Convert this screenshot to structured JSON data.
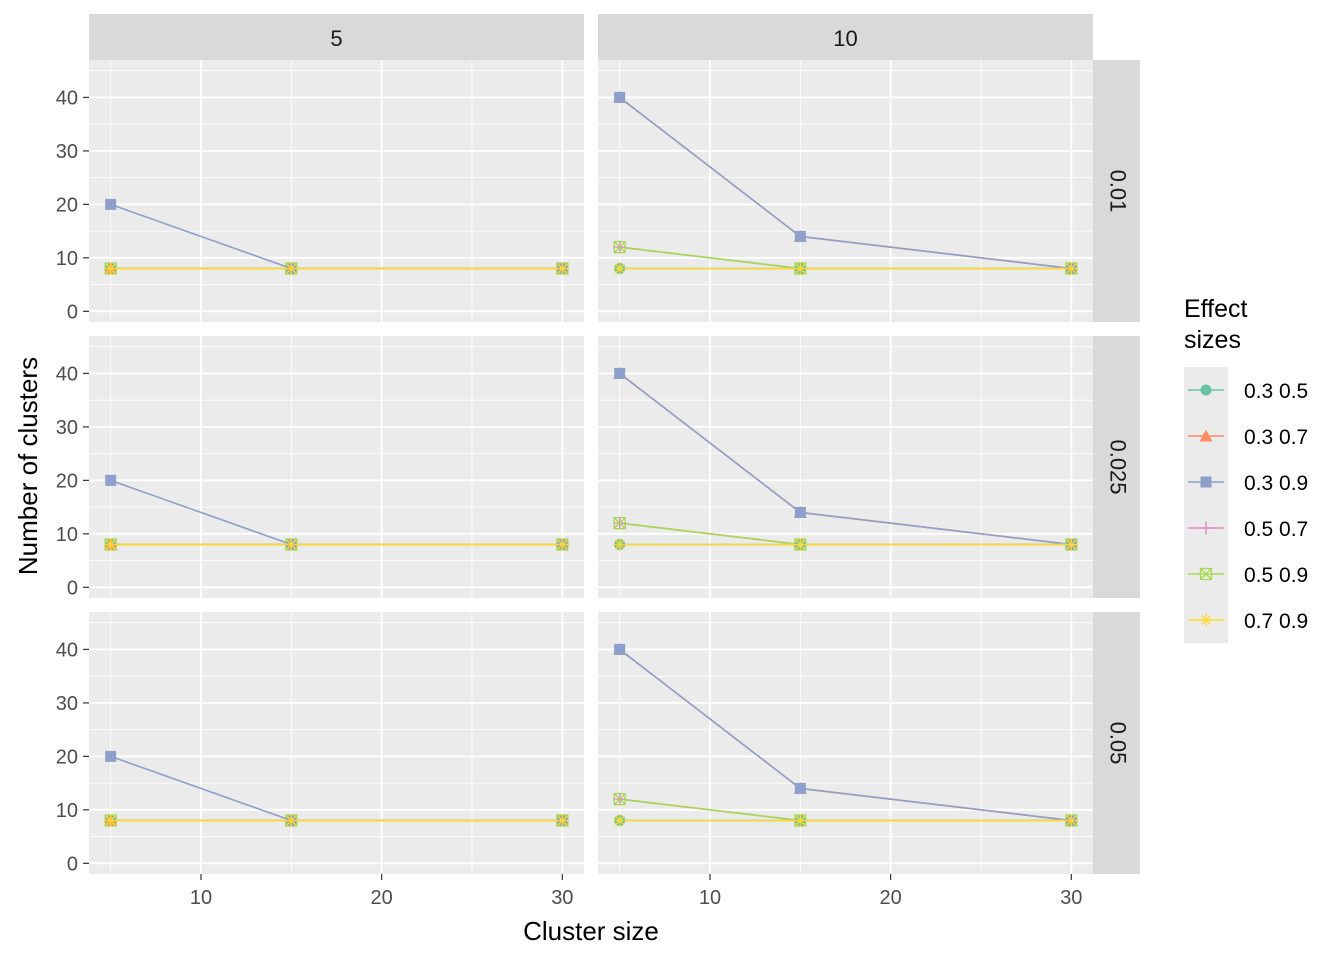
{
  "chart_data": {
    "type": "line",
    "facet_columns": [
      "5",
      "10"
    ],
    "facet_rows": [
      "0.01",
      "0.025",
      "0.05"
    ],
    "xlabel": "Cluster size",
    "ylabel": "Number of clusters",
    "xlim": [
      3.8,
      31.2
    ],
    "ylim": [
      -2,
      47
    ],
    "x_ticks": [
      10,
      20,
      30
    ],
    "y_ticks": [
      0,
      10,
      20,
      30,
      40
    ],
    "x_values": [
      5,
      15,
      30
    ],
    "grid": true,
    "legend": {
      "title_line1": "Effect",
      "title_line2": "sizes",
      "placement": "right",
      "entries": [
        {
          "label": "0.3 0.5",
          "color": "#66C2A5",
          "shape": "circle"
        },
        {
          "label": "0.3 0.7",
          "color": "#FC8D62",
          "shape": "triangle"
        },
        {
          "label": "0.3 0.9",
          "color": "#8DA0CB",
          "shape": "square"
        },
        {
          "label": "0.5 0.7",
          "color": "#E78AC3",
          "shape": "plus"
        },
        {
          "label": "0.5 0.9",
          "color": "#A6D854",
          "shape": "square-x"
        },
        {
          "label": "0.7 0.9",
          "color": "#FFD92F",
          "shape": "star"
        }
      ]
    },
    "panels": [
      {
        "col": "5",
        "row": "0.01",
        "series": [
          {
            "name": "0.3 0.5",
            "values": [
              8,
              8,
              8
            ]
          },
          {
            "name": "0.3 0.7",
            "values": [
              8,
              8,
              8
            ]
          },
          {
            "name": "0.3 0.9",
            "values": [
              20,
              8,
              8
            ]
          },
          {
            "name": "0.5 0.7",
            "values": [
              8,
              8,
              8
            ]
          },
          {
            "name": "0.5 0.9",
            "values": [
              8,
              8,
              8
            ]
          },
          {
            "name": "0.7 0.9",
            "values": [
              8,
              8,
              8
            ]
          }
        ]
      },
      {
        "col": "10",
        "row": "0.01",
        "series": [
          {
            "name": "0.3 0.5",
            "values": [
              8,
              8,
              8
            ]
          },
          {
            "name": "0.3 0.7",
            "values": [
              40,
              14,
              8
            ]
          },
          {
            "name": "0.3 0.9",
            "values": [
              40,
              14,
              8
            ]
          },
          {
            "name": "0.5 0.7",
            "values": [
              12,
              8,
              8
            ]
          },
          {
            "name": "0.5 0.9",
            "values": [
              12,
              8,
              8
            ]
          },
          {
            "name": "0.7 0.9",
            "values": [
              8,
              8,
              8
            ]
          }
        ]
      },
      {
        "col": "5",
        "row": "0.025",
        "series": [
          {
            "name": "0.3 0.5",
            "values": [
              8,
              8,
              8
            ]
          },
          {
            "name": "0.3 0.7",
            "values": [
              8,
              8,
              8
            ]
          },
          {
            "name": "0.3 0.9",
            "values": [
              20,
              8,
              8
            ]
          },
          {
            "name": "0.5 0.7",
            "values": [
              8,
              8,
              8
            ]
          },
          {
            "name": "0.5 0.9",
            "values": [
              8,
              8,
              8
            ]
          },
          {
            "name": "0.7 0.9",
            "values": [
              8,
              8,
              8
            ]
          }
        ]
      },
      {
        "col": "10",
        "row": "0.025",
        "series": [
          {
            "name": "0.3 0.5",
            "values": [
              8,
              8,
              8
            ]
          },
          {
            "name": "0.3 0.7",
            "values": [
              40,
              14,
              8
            ]
          },
          {
            "name": "0.3 0.9",
            "values": [
              40,
              14,
              8
            ]
          },
          {
            "name": "0.5 0.7",
            "values": [
              12,
              8,
              8
            ]
          },
          {
            "name": "0.5 0.9",
            "values": [
              12,
              8,
              8
            ]
          },
          {
            "name": "0.7 0.9",
            "values": [
              8,
              8,
              8
            ]
          }
        ]
      },
      {
        "col": "5",
        "row": "0.05",
        "series": [
          {
            "name": "0.3 0.5",
            "values": [
              8,
              8,
              8
            ]
          },
          {
            "name": "0.3 0.7",
            "values": [
              8,
              8,
              8
            ]
          },
          {
            "name": "0.3 0.9",
            "values": [
              20,
              8,
              8
            ]
          },
          {
            "name": "0.5 0.7",
            "values": [
              8,
              8,
              8
            ]
          },
          {
            "name": "0.5 0.9",
            "values": [
              8,
              8,
              8
            ]
          },
          {
            "name": "0.7 0.9",
            "values": [
              8,
              8,
              8
            ]
          }
        ]
      },
      {
        "col": "10",
        "row": "0.05",
        "series": [
          {
            "name": "0.3 0.5",
            "values": [
              8,
              8,
              8
            ]
          },
          {
            "name": "0.3 0.7",
            "values": [
              40,
              14,
              8
            ]
          },
          {
            "name": "0.3 0.9",
            "values": [
              40,
              14,
              8
            ]
          },
          {
            "name": "0.5 0.7",
            "values": [
              12,
              8,
              8
            ]
          },
          {
            "name": "0.5 0.9",
            "values": [
              12,
              8,
              8
            ]
          },
          {
            "name": "0.7 0.9",
            "values": [
              8,
              8,
              8
            ]
          }
        ]
      }
    ]
  }
}
